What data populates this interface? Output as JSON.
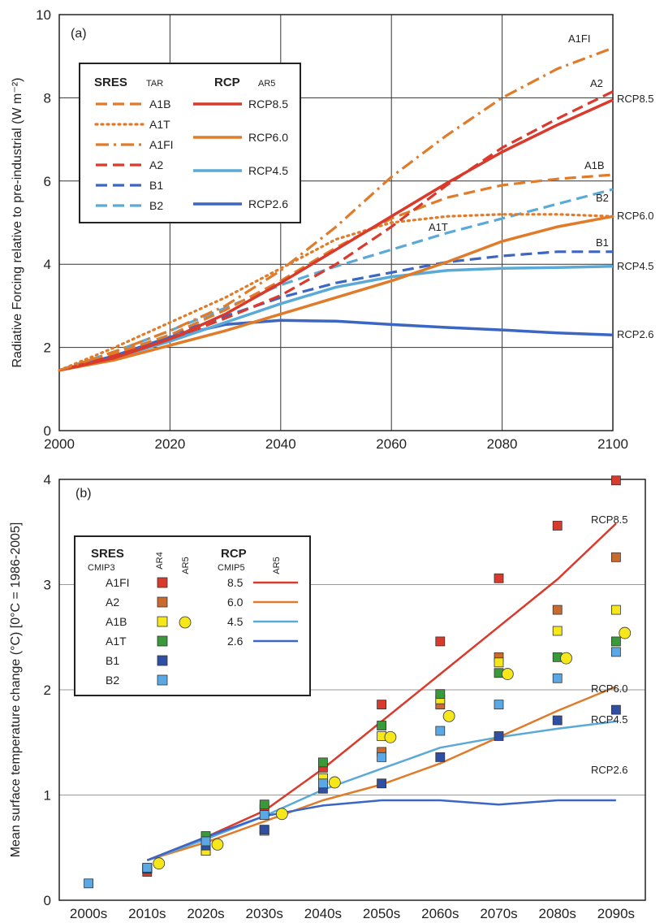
{
  "chart_data": [
    {
      "panel": "(a)",
      "type": "line",
      "ylabel": "Radiative Forcing relative to pre-industrial (W m⁻²)",
      "xlabel": "",
      "xlim": [
        2000,
        2100
      ],
      "ylim": [
        0,
        10
      ],
      "x_ticks": [
        "2000",
        "2020",
        "2040",
        "2060",
        "2080",
        "2100"
      ],
      "y_ticks": [
        "0",
        "2",
        "4",
        "6",
        "8",
        "10"
      ],
      "grid": true,
      "legend": {
        "placement": "top-left",
        "group1_title": "SRES",
        "group1_sub": "TAR",
        "group2_title": "RCP",
        "group2_sub": "AR5"
      },
      "series": [
        {
          "name": "A1B",
          "group": "SRES",
          "color": "#E07B2A",
          "dash": "dash",
          "label": "A1B",
          "points": [
            [
              2000,
              1.45
            ],
            [
              2010,
              1.85
            ],
            [
              2020,
              2.3
            ],
            [
              2030,
              2.9
            ],
            [
              2040,
              3.6
            ],
            [
              2050,
              4.4
            ],
            [
              2060,
              5.1
            ],
            [
              2070,
              5.6
            ],
            [
              2080,
              5.9
            ],
            [
              2090,
              6.05
            ],
            [
              2100,
              6.15
            ]
          ]
        },
        {
          "name": "A1T",
          "group": "SRES",
          "color": "#E07B2A",
          "dash": "dot",
          "label": "A1T",
          "points": [
            [
              2000,
              1.45
            ],
            [
              2010,
              2.0
            ],
            [
              2020,
              2.6
            ],
            [
              2030,
              3.2
            ],
            [
              2040,
              3.9
            ],
            [
              2050,
              4.6
            ],
            [
              2060,
              5.0
            ],
            [
              2070,
              5.15
            ],
            [
              2080,
              5.2
            ],
            [
              2090,
              5.2
            ],
            [
              2100,
              5.15
            ]
          ]
        },
        {
          "name": "A1FI",
          "group": "SRES",
          "color": "#E07B2A",
          "dash": "dashdot",
          "label": "A1FI",
          "points": [
            [
              2000,
              1.45
            ],
            [
              2010,
              1.9
            ],
            [
              2020,
              2.4
            ],
            [
              2030,
              3.0
            ],
            [
              2040,
              3.85
            ],
            [
              2050,
              4.9
            ],
            [
              2060,
              6.1
            ],
            [
              2070,
              7.1
            ],
            [
              2080,
              8.0
            ],
            [
              2090,
              8.7
            ],
            [
              2100,
              9.2
            ]
          ]
        },
        {
          "name": "A2",
          "group": "SRES",
          "color": "#D93A2B",
          "dash": "dash",
          "label": "A2",
          "points": [
            [
              2000,
              1.45
            ],
            [
              2010,
              1.8
            ],
            [
              2020,
              2.2
            ],
            [
              2030,
              2.7
            ],
            [
              2040,
              3.25
            ],
            [
              2050,
              4.0
            ],
            [
              2060,
              4.9
            ],
            [
              2070,
              5.9
            ],
            [
              2080,
              6.8
            ],
            [
              2090,
              7.5
            ],
            [
              2100,
              8.15
            ]
          ]
        },
        {
          "name": "B1",
          "group": "SRES",
          "color": "#3B66C4",
          "dash": "dash",
          "label": "B1",
          "points": [
            [
              2000,
              1.45
            ],
            [
              2010,
              1.85
            ],
            [
              2020,
              2.3
            ],
            [
              2030,
              2.75
            ],
            [
              2040,
              3.2
            ],
            [
              2050,
              3.55
            ],
            [
              2060,
              3.8
            ],
            [
              2070,
              4.05
            ],
            [
              2080,
              4.2
            ],
            [
              2090,
              4.3
            ],
            [
              2100,
              4.3
            ]
          ]
        },
        {
          "name": "B2",
          "group": "SRES",
          "color": "#5AA9D6",
          "dash": "dash",
          "label": "B2",
          "points": [
            [
              2000,
              1.45
            ],
            [
              2010,
              1.9
            ],
            [
              2020,
              2.4
            ],
            [
              2030,
              2.95
            ],
            [
              2040,
              3.5
            ],
            [
              2050,
              3.95
            ],
            [
              2060,
              4.35
            ],
            [
              2070,
              4.75
            ],
            [
              2080,
              5.1
            ],
            [
              2090,
              5.45
            ],
            [
              2100,
              5.8
            ]
          ]
        },
        {
          "name": "RCP8.5",
          "group": "RCP",
          "color": "#D93A2B",
          "dash": "solid",
          "label": "RCP8.5",
          "points": [
            [
              2000,
              1.45
            ],
            [
              2010,
              1.75
            ],
            [
              2020,
              2.2
            ],
            [
              2030,
              2.8
            ],
            [
              2040,
              3.55
            ],
            [
              2050,
              4.35
            ],
            [
              2060,
              5.15
            ],
            [
              2070,
              5.95
            ],
            [
              2080,
              6.7
            ],
            [
              2090,
              7.35
            ],
            [
              2100,
              7.95
            ]
          ]
        },
        {
          "name": "RCP6.0",
          "group": "RCP",
          "color": "#E07B2A",
          "dash": "solid",
          "label": "RCP6.0",
          "points": [
            [
              2000,
              1.45
            ],
            [
              2010,
              1.7
            ],
            [
              2020,
              2.05
            ],
            [
              2030,
              2.4
            ],
            [
              2040,
              2.8
            ],
            [
              2050,
              3.2
            ],
            [
              2060,
              3.6
            ],
            [
              2070,
              4.05
            ],
            [
              2080,
              4.55
            ],
            [
              2090,
              4.9
            ],
            [
              2100,
              5.15
            ]
          ]
        },
        {
          "name": "RCP4.5",
          "group": "RCP",
          "color": "#5AA9D6",
          "dash": "solid",
          "label": "RCP4.5",
          "points": [
            [
              2000,
              1.45
            ],
            [
              2010,
              1.75
            ],
            [
              2020,
              2.15
            ],
            [
              2030,
              2.6
            ],
            [
              2040,
              3.05
            ],
            [
              2050,
              3.45
            ],
            [
              2060,
              3.7
            ],
            [
              2070,
              3.85
            ],
            [
              2080,
              3.9
            ],
            [
              2090,
              3.92
            ],
            [
              2100,
              3.95
            ]
          ]
        },
        {
          "name": "RCP2.6",
          "group": "RCP",
          "color": "#3B66C4",
          "dash": "solid",
          "label": "RCP2.6",
          "points": [
            [
              2000,
              1.45
            ],
            [
              2010,
              1.8
            ],
            [
              2020,
              2.25
            ],
            [
              2030,
              2.55
            ],
            [
              2040,
              2.65
            ],
            [
              2050,
              2.63
            ],
            [
              2060,
              2.55
            ],
            [
              2070,
              2.48
            ],
            [
              2080,
              2.42
            ],
            [
              2090,
              2.35
            ],
            [
              2100,
              2.3
            ]
          ]
        }
      ]
    },
    {
      "panel": "(b)",
      "type": "line+scatter",
      "ylabel": "Mean surface temperature change (°C)   [0°C = 1986-2005]",
      "xlabel": "",
      "categories": [
        "2000s",
        "2010s",
        "2020s",
        "2030s",
        "2040s",
        "2050s",
        "2060s",
        "2070s",
        "2080s",
        "2090s"
      ],
      "ylim": [
        0,
        4
      ],
      "y_ticks": [
        "0",
        "1",
        "2",
        "3",
        "4"
      ],
      "grid": true,
      "legend": {
        "placement": "top-left",
        "sres_title": "SRES",
        "sres_sub": "CMIP3",
        "col_ar4": "AR4",
        "col_ar5": "AR5",
        "rcp_title": "RCP",
        "rcp_sub": "CMIP5",
        "rcp_col": "AR5",
        "rcp_items": [
          "8.5",
          "6.0",
          "4.5",
          "2.6"
        ]
      },
      "lines": [
        {
          "name": "RCP8.5",
          "color": "#D93A2B",
          "label": "RCP8.5",
          "values": [
            null,
            0.38,
            0.6,
            0.85,
            1.25,
            1.7,
            2.15,
            2.6,
            3.05,
            3.58
          ]
        },
        {
          "name": "RCP6.0",
          "color": "#E07B2A",
          "label": "RCP6.0",
          "values": [
            null,
            0.38,
            0.55,
            0.75,
            0.95,
            1.1,
            1.3,
            1.55,
            1.8,
            2.03
          ]
        },
        {
          "name": "RCP4.5",
          "color": "#5AA9D6",
          "label": "RCP4.5",
          "values": [
            null,
            0.38,
            0.58,
            0.8,
            1.05,
            1.25,
            1.45,
            1.55,
            1.63,
            1.7
          ]
        },
        {
          "name": "RCP2.6",
          "color": "#3B66C4",
          "label": "RCP2.6",
          "values": [
            null,
            0.38,
            0.6,
            0.8,
            0.9,
            0.95,
            0.95,
            0.91,
            0.95,
            0.95
          ]
        }
      ],
      "sres_markers": [
        {
          "name": "A1FI",
          "color": "#D93A2B",
          "points": [
            [
              1,
              0.27
            ],
            [
              3,
              0.87
            ],
            [
              4,
              1.26
            ],
            [
              5,
              1.86
            ],
            [
              6,
              2.46
            ],
            [
              7,
              3.06
            ],
            [
              8,
              3.56
            ],
            [
              9,
              3.99
            ]
          ]
        },
        {
          "name": "A2",
          "color": "#C96A2E",
          "points": [
            [
              1,
              0.3
            ],
            [
              2,
              0.47
            ],
            [
              3,
              0.67
            ],
            [
              4,
              1.16
            ],
            [
              5,
              1.41
            ],
            [
              6,
              1.86
            ],
            [
              7,
              2.31
            ],
            [
              8,
              2.76
            ],
            [
              9,
              3.26
            ]
          ]
        },
        {
          "name": "A1B",
          "color": "#F5E71A",
          "points": [
            [
              1,
              0.3
            ],
            [
              2,
              0.47
            ],
            [
              3,
              0.66
            ],
            [
              4,
              1.16
            ],
            [
              5,
              1.56
            ],
            [
              6,
              1.91
            ],
            [
              7,
              2.26
            ],
            [
              8,
              2.56
            ],
            [
              9,
              2.76
            ]
          ]
        },
        {
          "name": "A1T",
          "color": "#3A9A3A",
          "points": [
            [
              1,
              0.3
            ],
            [
              2,
              0.61
            ],
            [
              3,
              0.91
            ],
            [
              4,
              1.31
            ],
            [
              5,
              1.66
            ],
            [
              6,
              1.96
            ],
            [
              7,
              2.16
            ],
            [
              8,
              2.31
            ],
            [
              9,
              2.46
            ]
          ]
        },
        {
          "name": "B1",
          "color": "#2E4FA3",
          "points": [
            [
              1,
              0.3
            ],
            [
              2,
              0.52
            ],
            [
              3,
              0.67
            ],
            [
              4,
              1.06
            ],
            [
              5,
              1.11
            ],
            [
              6,
              1.36
            ],
            [
              7,
              1.56
            ],
            [
              8,
              1.71
            ],
            [
              9,
              1.81
            ]
          ]
        },
        {
          "name": "B2",
          "color": "#5AA9E6",
          "points": [
            [
              0,
              0.16
            ],
            [
              1,
              0.31
            ],
            [
              2,
              0.56
            ],
            [
              3,
              0.81
            ],
            [
              4,
              1.11
            ],
            [
              5,
              1.36
            ],
            [
              6,
              1.61
            ],
            [
              7,
              1.86
            ],
            [
              8,
              2.11
            ],
            [
              9,
              2.36
            ]
          ]
        }
      ],
      "ar5_a1b_circles": {
        "name": "A1B",
        "color": "#F5E71A",
        "points": [
          [
            1.2,
            0.35
          ],
          [
            2.2,
            0.53
          ],
          [
            3.3,
            0.82
          ],
          [
            4.2,
            1.12
          ],
          [
            5.15,
            1.55
          ],
          [
            6.15,
            1.75
          ],
          [
            7.15,
            2.15
          ],
          [
            8.15,
            2.3
          ],
          [
            9.15,
            2.54
          ]
        ]
      }
    }
  ]
}
